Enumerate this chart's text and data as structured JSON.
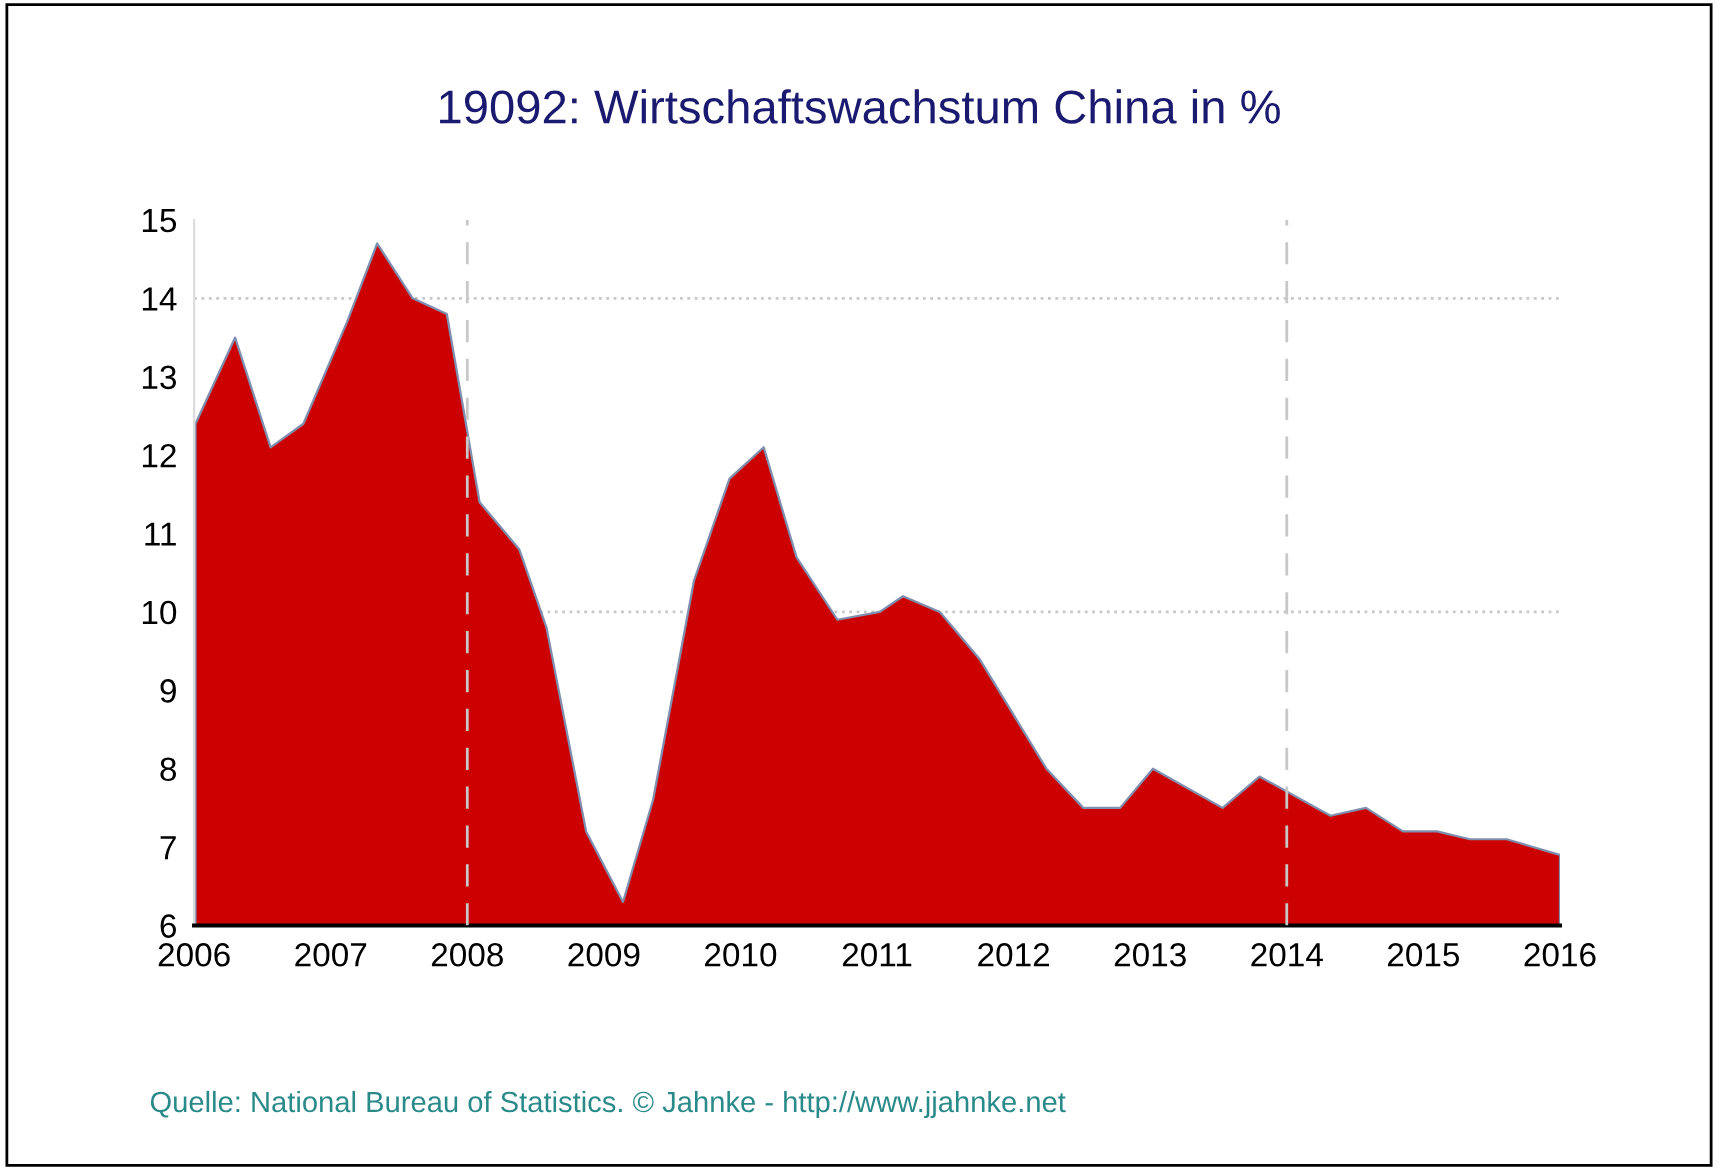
{
  "chart_data": {
    "type": "area",
    "title": "19092: Wirtschaftswachstum China in %",
    "x": [
      2006.01,
      2006.3,
      2006.56,
      2006.8,
      2007.12,
      2007.34,
      2007.6,
      2007.85,
      2008.09,
      2008.38,
      2008.58,
      2008.87,
      2009.14,
      2009.36,
      2009.66,
      2009.92,
      2010.17,
      2010.41,
      2010.71,
      2011.02,
      2011.19,
      2011.46,
      2011.75,
      2012.24,
      2012.51,
      2012.78,
      2013.02,
      2013.53,
      2013.8,
      2014.32,
      2014.58,
      2014.85,
      2015.1,
      2015.34,
      2015.61,
      2016.0
    ],
    "series": [
      {
        "color": "#cc0000",
        "values": [
          12.4,
          13.5,
          12.1,
          12.4,
          13.7,
          14.7,
          14.0,
          13.8,
          11.4,
          10.8,
          9.8,
          7.2,
          6.3,
          7.6,
          10.4,
          11.7,
          12.1,
          10.7,
          9.9,
          10.0,
          10.2,
          10.0,
          9.4,
          8.0,
          7.5,
          7.5,
          8.0,
          7.5,
          7.9,
          7.4,
          7.5,
          7.2,
          7.2,
          7.1,
          7.1,
          6.9
        ]
      }
    ],
    "xlim": [
      2006,
      2016
    ],
    "xticks": [
      2006,
      2007,
      2008,
      2009,
      2010,
      2011,
      2012,
      2013,
      2014,
      2015,
      2016
    ],
    "ylim": [
      6,
      15
    ],
    "yticks": [
      6,
      7,
      8,
      9,
      10,
      11,
      12,
      13,
      14,
      15
    ],
    "ref_lines": [
      {
        "axis": "y",
        "value": 10,
        "color": "#c8c8c8",
        "line_style": "dotted"
      },
      {
        "axis": "y",
        "value": 14,
        "color": "#c8c8c8",
        "line_style": "dotted"
      },
      {
        "axis": "x",
        "value": 2008,
        "color": "#c8c8c8",
        "line_style": "dashed"
      },
      {
        "axis": "x",
        "value": 2014,
        "color": "#c8c8c8",
        "line_style": "dashed"
      }
    ],
    "annotations": [
      "Quelle: National Bureau of Statistics. © Jahnke - http://www.jjahnke.net"
    ]
  }
}
